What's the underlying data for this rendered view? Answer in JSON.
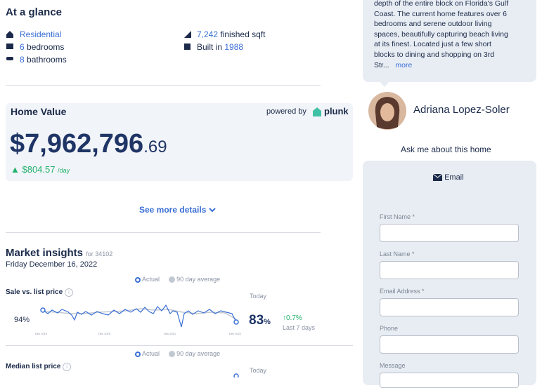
{
  "glance": {
    "title": "At a glance",
    "type": "Residential",
    "bedrooms_count": "6",
    "bedrooms_label": "bedrooms",
    "bathrooms_count": "8",
    "bathrooms_label": "bathrooms",
    "sqft": "7,242",
    "sqft_label": "finished sqft",
    "built_label": "Built in",
    "built_year": "1988"
  },
  "home_value": {
    "title": "Home Value",
    "powered_by": "powered by",
    "brand": "plunk",
    "dollars": "$7,962,796",
    "cents": ".69",
    "change": "$804.57",
    "per": "/day"
  },
  "see_more": "See more details",
  "market": {
    "title": "Market insights",
    "zip": "for 34102",
    "date": "Friday December 16, 2022",
    "legend": [
      "Actual",
      "90 day average"
    ],
    "metrics": [
      {
        "name": "Sale vs. list price",
        "start": "94%",
        "x_labels": [
          "Dec 2019",
          "Dec 2020",
          "Dec 2021",
          "Dec 2022"
        ],
        "today_label": "Today",
        "today_value": "83",
        "today_unit": "%",
        "change": "↑0.7%",
        "change_period": "Last 7 days"
      },
      {
        "name": "Median list price",
        "today_label": "Today"
      }
    ]
  },
  "description": {
    "lines": [
      "depth of the entire block on Florida's Gulf",
      "Coast. The current home features over 6",
      "bedrooms and serene outdoor living",
      "spaces, beautifully capturing beach living",
      "at its finest. Located just a few short",
      "blocks to dining and shopping on 3rd"
    ],
    "last": "Str...",
    "more": "more"
  },
  "agent": {
    "name": "Adriana Lopez-Soler",
    "prompt": "Ask me about this home"
  },
  "form": {
    "tab": "Email",
    "fields": [
      "First Name *",
      "Last Name *",
      "Email Address *",
      "Phone",
      "Message"
    ]
  }
}
